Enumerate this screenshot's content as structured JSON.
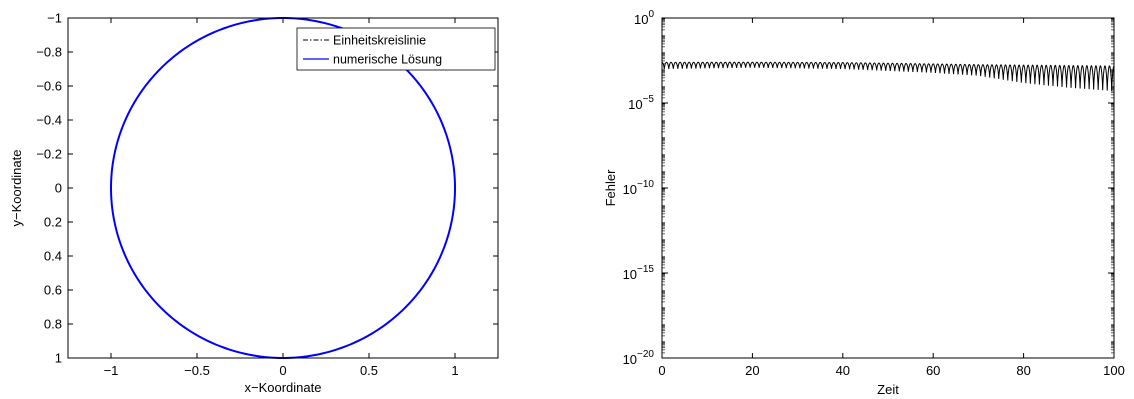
{
  "chart_data": [
    {
      "type": "line",
      "xlabel": "x−Koordinate",
      "ylabel": "y−Koordinate",
      "xlim": [
        -1.25,
        1.25
      ],
      "ylim": [
        -1,
        1
      ],
      "y_reversed": true,
      "xticks": [
        -1,
        -0.5,
        0,
        0.5,
        1
      ],
      "xtick_labels": [
        "−1",
        "−0.5",
        "0",
        "0.5",
        "1"
      ],
      "yticks": [
        -1,
        -0.8,
        -0.6,
        -0.4,
        -0.2,
        0,
        0.2,
        0.4,
        0.6,
        0.8,
        1
      ],
      "ytick_labels": [
        "−1",
        "−0.8",
        "−0.6",
        "−0.4",
        "−0.2",
        "0",
        "0.2",
        "0.4",
        "0.6",
        "0.8",
        "1"
      ],
      "grid": false,
      "legend_position": "top-right",
      "series": [
        {
          "name": "Einheitskreislinie",
          "shape": "circle",
          "center": [
            0,
            0
          ],
          "radius": 1,
          "color": "#000000",
          "style": "dash-dot"
        },
        {
          "name": "numerische Lösung",
          "shape": "circle",
          "center": [
            0,
            0
          ],
          "radius": 1,
          "color": "#0000ff",
          "style": "solid"
        }
      ]
    },
    {
      "type": "line",
      "xlabel": "Zeit",
      "ylabel": "Fehler",
      "xlim": [
        0,
        100
      ],
      "ylim": [
        1e-20,
        1
      ],
      "yscale": "log",
      "xticks": [
        0,
        20,
        40,
        60,
        80,
        100
      ],
      "xtick_labels": [
        "0",
        "20",
        "40",
        "60",
        "80",
        "100"
      ],
      "yticks": [
        1e-20,
        1e-15,
        1e-10,
        1e-05,
        1
      ],
      "ytick_labels": [
        {
          "base": "10",
          "exp": "−20"
        },
        {
          "base": "10",
          "exp": "−15"
        },
        {
          "base": "10",
          "exp": "−10"
        },
        {
          "base": "10",
          "exp": "−5"
        },
        {
          "base": "10",
          "exp": "0"
        }
      ],
      "grid": false,
      "series": [
        {
          "color": "#000000",
          "oscillation_period": 1,
          "envelope": [
            {
              "x": 0,
              "upper": 0.0025,
              "lower": 0.001
            },
            {
              "x": 20,
              "upper": 0.0025,
              "lower": 0.0012
            },
            {
              "x": 40,
              "upper": 0.0024,
              "lower": 0.001
            },
            {
              "x": 60,
              "upper": 0.002,
              "lower": 0.0006
            },
            {
              "x": 70,
              "upper": 0.0018,
              "lower": 0.0004
            },
            {
              "x": 80,
              "upper": 0.0017,
              "lower": 0.00015
            },
            {
              "x": 90,
              "upper": 0.0016,
              "lower": 8e-05
            },
            {
              "x": 100,
              "upper": 0.0015,
              "lower": 5e-05
            }
          ]
        }
      ]
    }
  ]
}
